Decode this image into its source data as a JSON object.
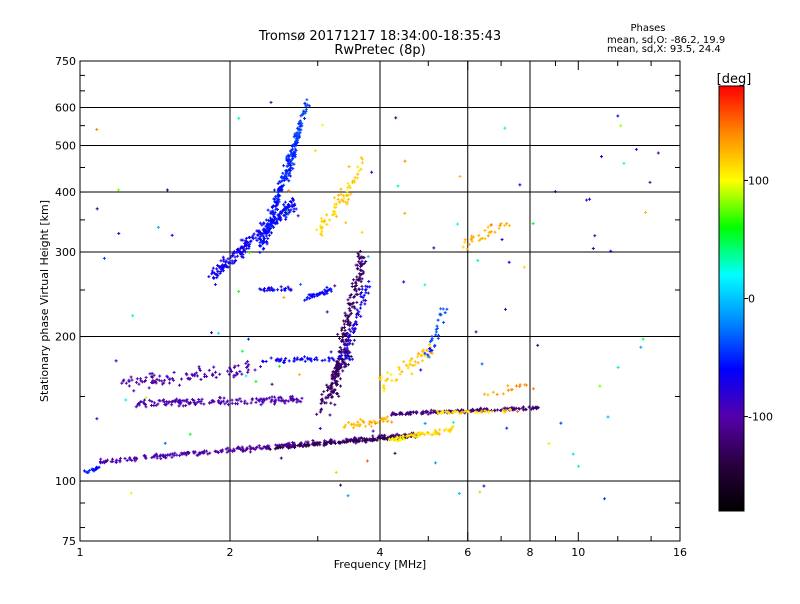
{
  "chart_data": {
    "type": "scatter",
    "title": "Tromsø 20171217 18:34:00-18:35:43",
    "subtitle": "RwPretec (8p)",
    "xlabel": "Frequency [MHz]",
    "ylabel": "Stationary phase Virtual Height [km]",
    "x_scale": "log",
    "y_scale": "log",
    "xlim": [
      1,
      16
    ],
    "ylim": [
      75,
      750
    ],
    "x_ticks": [
      1,
      2,
      4,
      6,
      8,
      10,
      16
    ],
    "y_ticks": [
      75,
      100,
      200,
      300,
      400,
      500,
      600,
      750
    ],
    "x_ticklabels": [
      "1",
      "2",
      "4",
      "6",
      "8",
      "10",
      "16"
    ],
    "y_ticklabels": [
      "75",
      "100",
      "200",
      "300",
      "400",
      "500",
      "600",
      "750"
    ],
    "grid": true,
    "grid_x": [
      2,
      4,
      6,
      8
    ],
    "grid_y": [
      100,
      200,
      300,
      400,
      500,
      600
    ],
    "info_box": {
      "title": "Phases",
      "line1": "mean, sd,O: -86.2, 19.9",
      "line2": "mean, sd,X:  93.5, 24.4"
    },
    "colorbar": {
      "label": "[deg]",
      "min": -180,
      "max": 180,
      "ticks": [
        100,
        0,
        -100
      ],
      "tick_labels": [
        "100",
        "0",
        "-100"
      ]
    },
    "color_scale": [
      "#000000",
      "#2a0040",
      "#5500aa",
      "#0000ff",
      "#0088ff",
      "#00ffff",
      "#00ff00",
      "#ffff00",
      "#ff8800",
      "#ff0000"
    ],
    "series": [
      {
        "kind": "segment",
        "f0": 1.02,
        "f1": 1.1,
        "h0": 104,
        "h1": 107,
        "phase0": -55,
        "phase1": -60,
        "n": 18,
        "spread": 0.015
      },
      {
        "kind": "segment",
        "f0": 1.1,
        "f1": 4.8,
        "h0": 110,
        "h1": 125,
        "phase0": -95,
        "phase1": -115,
        "n": 320,
        "spread": 0.018
      },
      {
        "kind": "segment",
        "f0": 2.4,
        "f1": 4.6,
        "h0": 117,
        "h1": 124,
        "phase0": -135,
        "phase1": -140,
        "n": 120,
        "spread": 0.01
      },
      {
        "kind": "segment",
        "f0": 1.3,
        "f1": 2.8,
        "h0": 145,
        "h1": 148,
        "phase0": -100,
        "phase1": -95,
        "n": 160,
        "spread": 0.025
      },
      {
        "kind": "segment",
        "f0": 1.2,
        "f1": 2.3,
        "h0": 160,
        "h1": 172,
        "phase0": -100,
        "phase1": -95,
        "n": 100,
        "spread": 0.05
      },
      {
        "kind": "segment",
        "f0": 2.3,
        "f1": 3.6,
        "h0": 178,
        "h1": 180,
        "phase0": -70,
        "phase1": -60,
        "n": 50,
        "spread": 0.02
      },
      {
        "kind": "segment",
        "f0": 4.2,
        "f1": 8.3,
        "h0": 138,
        "h1": 142,
        "phase0": -115,
        "phase1": -120,
        "n": 160,
        "spread": 0.012
      },
      {
        "kind": "segment",
        "f0": 4.2,
        "f1": 5.6,
        "h0": 122,
        "h1": 128,
        "phase0": 105,
        "phase1": 115,
        "n": 70,
        "spread": 0.02
      },
      {
        "kind": "segment",
        "f0": 5.2,
        "f1": 7.4,
        "h0": 139,
        "h1": 140,
        "phase0": 110,
        "phase1": 112,
        "n": 40,
        "spread": 0.012
      },
      {
        "kind": "segment",
        "f0": 3.4,
        "f1": 4.2,
        "h0": 130,
        "h1": 135,
        "phase0": 120,
        "phase1": 130,
        "n": 40,
        "spread": 0.03
      },
      {
        "kind": "segment",
        "f0": 2.8,
        "f1": 3.2,
        "h0": 240,
        "h1": 250,
        "phase0": -60,
        "phase1": -60,
        "n": 40,
        "spread": 0.02
      },
      {
        "kind": "segment",
        "f0": 2.3,
        "f1": 2.7,
        "h0": 250,
        "h1": 252,
        "phase0": -65,
        "phase1": -65,
        "n": 25,
        "spread": 0.015
      },
      {
        "kind": "segment",
        "f0": 1.85,
        "f1": 2.7,
        "h0": 268,
        "h1": 380,
        "phase0": -70,
        "phase1": -60,
        "n": 240,
        "spread": 0.05
      },
      {
        "kind": "segment",
        "f0": 2.3,
        "f1": 2.85,
        "h0": 300,
        "h1": 610,
        "phase0": -60,
        "phase1": -40,
        "n": 200,
        "spread": 0.04
      },
      {
        "kind": "segment",
        "f0": 2.6,
        "f1": 2.8,
        "h0": 420,
        "h1": 560,
        "phase0": -50,
        "phase1": -45,
        "n": 40,
        "spread": 0.02
      },
      {
        "kind": "segment",
        "f0": 3.2,
        "f1": 3.7,
        "h0": 150,
        "h1": 300,
        "phase0": -130,
        "phase1": -125,
        "n": 200,
        "spread": 0.06
      },
      {
        "kind": "segment",
        "f0": 3.3,
        "f1": 3.8,
        "h0": 170,
        "h1": 260,
        "phase0": -80,
        "phase1": -70,
        "n": 80,
        "spread": 0.05
      },
      {
        "kind": "segment",
        "f0": 3.0,
        "f1": 3.5,
        "h0": 140,
        "h1": 190,
        "phase0": -125,
        "phase1": -130,
        "n": 60,
        "spread": 0.05
      },
      {
        "kind": "segment",
        "f0": 3.0,
        "f1": 3.4,
        "h0": 330,
        "h1": 400,
        "phase0": 110,
        "phase1": 120,
        "n": 40,
        "spread": 0.05
      },
      {
        "kind": "segment",
        "f0": 3.4,
        "f1": 3.7,
        "h0": 380,
        "h1": 470,
        "phase0": 115,
        "phase1": 120,
        "n": 25,
        "spread": 0.04
      },
      {
        "kind": "segment",
        "f0": 4.0,
        "f1": 5.2,
        "h0": 160,
        "h1": 190,
        "phase0": 110,
        "phase1": 125,
        "n": 50,
        "spread": 0.06
      },
      {
        "kind": "segment",
        "f0": 5.0,
        "f1": 5.4,
        "h0": 180,
        "h1": 230,
        "phase0": -45,
        "phase1": -40,
        "n": 30,
        "spread": 0.05
      },
      {
        "kind": "segment",
        "f0": 5.8,
        "f1": 7.2,
        "h0": 310,
        "h1": 345,
        "phase0": 125,
        "phase1": 130,
        "n": 30,
        "spread": 0.05
      },
      {
        "kind": "segment",
        "f0": 6.5,
        "f1": 8.2,
        "h0": 150,
        "h1": 160,
        "phase0": 130,
        "phase1": 140,
        "n": 15,
        "spread": 0.04
      },
      {
        "kind": "scatter",
        "fmin": 1.05,
        "fmax": 15.5,
        "hmin": 90,
        "hmax": 620,
        "phase_min": -130,
        "phase_max": 160,
        "n": 110
      }
    ]
  }
}
